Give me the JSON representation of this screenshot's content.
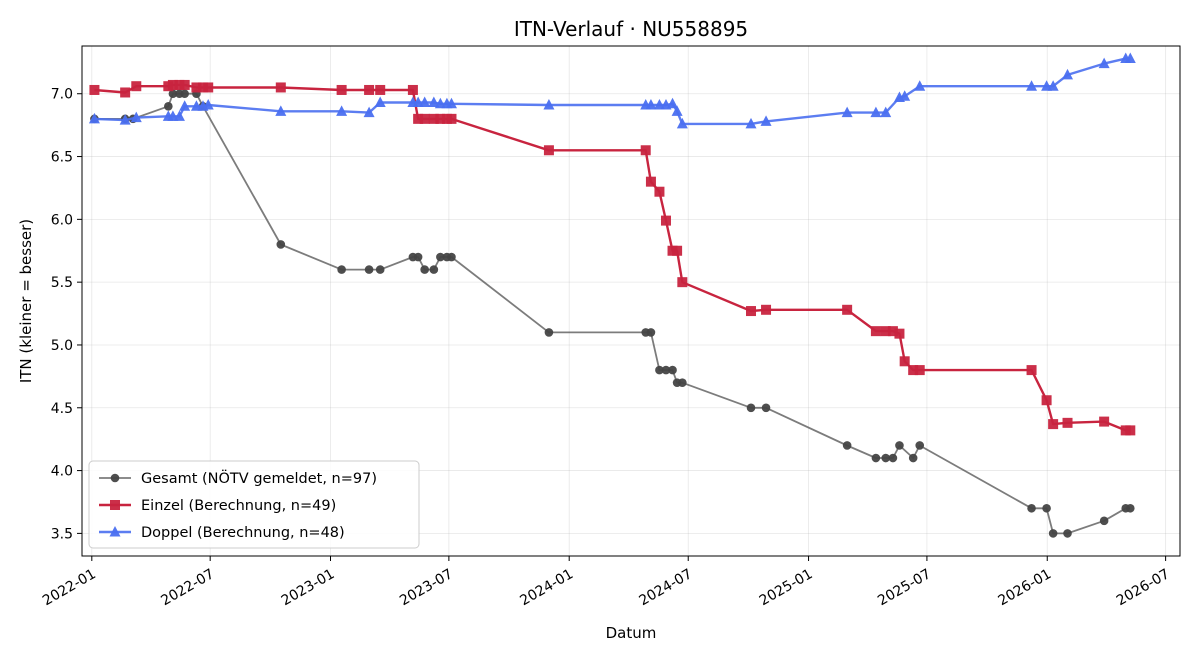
{
  "chart_data": {
    "type": "line",
    "title": "ITN-Verlauf · NU558895",
    "xlabel": "Datum",
    "ylabel": "ITN  (kleiner = besser)",
    "x_axis": "date",
    "xlim": [
      "2021-12-17",
      "2026-07-23"
    ],
    "ylim": [
      3.32,
      7.38
    ],
    "x_ticks": [
      "2022-01-01",
      "2022-07-01",
      "2023-01-01",
      "2023-07-01",
      "2024-01-01",
      "2024-07-01",
      "2025-01-01",
      "2025-07-01",
      "2026-01-01",
      "2026-07-01"
    ],
    "x_tick_labels": [
      "2022-01",
      "2022-07",
      "2023-01",
      "2023-07",
      "2024-01",
      "2024-07",
      "2025-01",
      "2025-07",
      "2026-01",
      "2026-07"
    ],
    "y_ticks": [
      3.5,
      4.0,
      4.5,
      5.0,
      5.5,
      6.0,
      6.5,
      7.0
    ],
    "y_tick_labels": [
      "3.5",
      "4.0",
      "4.5",
      "5.0",
      "5.5",
      "6.0",
      "6.5",
      "7.0"
    ],
    "grid": true,
    "legend_position": "lower-left",
    "series": [
      {
        "name": "Gesamt (NÖTV gemeldet, n=97)",
        "color": "#444444",
        "marker": "circle",
        "points": [
          [
            "2022-01-05",
            6.8
          ],
          [
            "2022-02-21",
            6.8
          ],
          [
            "2022-03-05",
            6.8
          ],
          [
            "2022-04-28",
            6.9
          ],
          [
            "2022-05-05",
            7.0
          ],
          [
            "2022-05-15",
            7.0
          ],
          [
            "2022-05-23",
            7.0
          ],
          [
            "2022-06-10",
            7.0
          ],
          [
            "2022-06-20",
            6.9
          ],
          [
            "2022-10-17",
            5.8
          ],
          [
            "2023-01-18",
            5.6
          ],
          [
            "2023-03-01",
            5.6
          ],
          [
            "2023-03-18",
            5.6
          ],
          [
            "2023-05-07",
            5.7
          ],
          [
            "2023-05-15",
            5.7
          ],
          [
            "2023-05-25",
            5.6
          ],
          [
            "2023-06-08",
            5.6
          ],
          [
            "2023-06-18",
            5.7
          ],
          [
            "2023-06-28",
            5.7
          ],
          [
            "2023-07-05",
            5.7
          ],
          [
            "2023-12-01",
            5.1
          ],
          [
            "2024-04-27",
            5.1
          ],
          [
            "2024-05-05",
            5.1
          ],
          [
            "2024-05-18",
            4.8
          ],
          [
            "2024-05-28",
            4.8
          ],
          [
            "2024-06-07",
            4.8
          ],
          [
            "2024-06-14",
            4.7
          ],
          [
            "2024-06-22",
            4.7
          ],
          [
            "2024-10-05",
            4.5
          ],
          [
            "2024-10-28",
            4.5
          ],
          [
            "2025-03-01",
            4.2
          ],
          [
            "2025-04-14",
            4.1
          ],
          [
            "2025-04-29",
            4.1
          ],
          [
            "2025-05-10",
            4.1
          ],
          [
            "2025-05-20",
            4.2
          ],
          [
            "2025-06-10",
            4.1
          ],
          [
            "2025-06-20",
            4.2
          ],
          [
            "2025-12-08",
            3.7
          ],
          [
            "2025-12-31",
            3.7
          ],
          [
            "2026-01-10",
            3.5
          ],
          [
            "2026-02-01",
            3.5
          ],
          [
            "2026-03-29",
            3.6
          ],
          [
            "2026-05-01",
            3.7
          ],
          [
            "2026-05-08",
            3.7
          ]
        ]
      },
      {
        "name": "Einzel (Berechnung, n=49)",
        "color": "#c8243f",
        "marker": "square",
        "points": [
          [
            "2022-01-05",
            7.03
          ],
          [
            "2022-02-21",
            7.01
          ],
          [
            "2022-03-10",
            7.06
          ],
          [
            "2022-04-28",
            7.06
          ],
          [
            "2022-05-05",
            7.07
          ],
          [
            "2022-05-15",
            7.07
          ],
          [
            "2022-05-23",
            7.07
          ],
          [
            "2022-06-10",
            7.05
          ],
          [
            "2022-06-20",
            7.05
          ],
          [
            "2022-06-28",
            7.05
          ],
          [
            "2022-10-17",
            7.05
          ],
          [
            "2023-01-18",
            7.03
          ],
          [
            "2023-03-01",
            7.03
          ],
          [
            "2023-03-18",
            7.03
          ],
          [
            "2023-05-07",
            7.03
          ],
          [
            "2023-05-15",
            6.8
          ],
          [
            "2023-05-25",
            6.8
          ],
          [
            "2023-06-08",
            6.8
          ],
          [
            "2023-06-18",
            6.8
          ],
          [
            "2023-06-28",
            6.8
          ],
          [
            "2023-07-05",
            6.8
          ],
          [
            "2023-12-01",
            6.55
          ],
          [
            "2024-04-27",
            6.55
          ],
          [
            "2024-05-05",
            6.3
          ],
          [
            "2024-05-18",
            6.22
          ],
          [
            "2024-05-28",
            5.99
          ],
          [
            "2024-06-07",
            5.75
          ],
          [
            "2024-06-14",
            5.75
          ],
          [
            "2024-06-22",
            5.5
          ],
          [
            "2024-10-05",
            5.27
          ],
          [
            "2024-10-28",
            5.28
          ],
          [
            "2025-03-01",
            5.28
          ],
          [
            "2025-04-14",
            5.11
          ],
          [
            "2025-04-29",
            5.11
          ],
          [
            "2025-05-10",
            5.11
          ],
          [
            "2025-05-20",
            5.09
          ],
          [
            "2025-05-28",
            4.87
          ],
          [
            "2025-06-10",
            4.8
          ],
          [
            "2025-06-20",
            4.8
          ],
          [
            "2025-12-08",
            4.8
          ],
          [
            "2025-12-31",
            4.56
          ],
          [
            "2026-01-10",
            4.37
          ],
          [
            "2026-02-01",
            4.38
          ],
          [
            "2026-03-29",
            4.39
          ],
          [
            "2026-05-01",
            4.32
          ],
          [
            "2026-05-08",
            4.32
          ]
        ]
      },
      {
        "name": "Doppel (Berechnung, n=48)",
        "color": "#4a6ff0",
        "marker": "triangle",
        "points": [
          [
            "2022-01-05",
            6.8
          ],
          [
            "2022-02-21",
            6.79
          ],
          [
            "2022-03-10",
            6.81
          ],
          [
            "2022-04-28",
            6.82
          ],
          [
            "2022-05-05",
            6.82
          ],
          [
            "2022-05-15",
            6.82
          ],
          [
            "2022-05-23",
            6.9
          ],
          [
            "2022-06-10",
            6.9
          ],
          [
            "2022-06-20",
            6.9
          ],
          [
            "2022-06-28",
            6.91
          ],
          [
            "2022-10-17",
            6.86
          ],
          [
            "2023-01-18",
            6.86
          ],
          [
            "2023-03-01",
            6.85
          ],
          [
            "2023-03-18",
            6.93
          ],
          [
            "2023-05-07",
            6.93
          ],
          [
            "2023-05-15",
            6.93
          ],
          [
            "2023-05-25",
            6.93
          ],
          [
            "2023-06-08",
            6.93
          ],
          [
            "2023-06-18",
            6.92
          ],
          [
            "2023-06-28",
            6.92
          ],
          [
            "2023-07-05",
            6.92
          ],
          [
            "2023-12-01",
            6.91
          ],
          [
            "2024-04-27",
            6.91
          ],
          [
            "2024-05-05",
            6.91
          ],
          [
            "2024-05-18",
            6.91
          ],
          [
            "2024-05-28",
            6.91
          ],
          [
            "2024-06-07",
            6.92
          ],
          [
            "2024-06-14",
            6.86
          ],
          [
            "2024-06-22",
            6.76
          ],
          [
            "2024-10-05",
            6.76
          ],
          [
            "2024-10-28",
            6.78
          ],
          [
            "2025-03-01",
            6.85
          ],
          [
            "2025-04-14",
            6.85
          ],
          [
            "2025-04-29",
            6.85
          ],
          [
            "2025-05-20",
            6.97
          ],
          [
            "2025-05-28",
            6.98
          ],
          [
            "2025-06-20",
            7.06
          ],
          [
            "2025-12-08",
            7.06
          ],
          [
            "2025-12-31",
            7.06
          ],
          [
            "2026-01-10",
            7.06
          ],
          [
            "2026-02-01",
            7.15
          ],
          [
            "2026-03-29",
            7.24
          ],
          [
            "2026-05-01",
            7.28
          ],
          [
            "2026-05-08",
            7.28
          ]
        ]
      }
    ]
  }
}
